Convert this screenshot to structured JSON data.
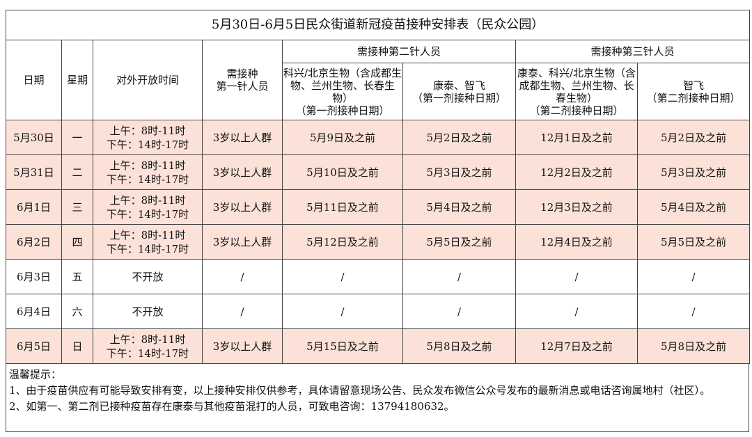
{
  "title": "5月30日-6月5日民众街道新冠疫苗接种安排表（民众公园）",
  "headers": {
    "date": "日期",
    "weekday": "星期",
    "hours": "对外开放时间",
    "first": "需接种\n第一针人员",
    "second_group": "需接种第二针人员",
    "third_group": "需接种第三针人员",
    "second_a": "科兴/北京生物（含成都生物、兰州生物、长春生物）\n（第一剂接种日期）",
    "second_b": "康泰、智飞\n（第一剂接种日期）",
    "third_a": "康泰、科兴/北京生物（含成都生物、兰州生物、长春生物）\n（第二剂接种日期）",
    "third_b": "智飞\n（第二剂接种日期）"
  },
  "rows": [
    {
      "date": "5月30日",
      "weekday": "一",
      "am": "上午：8时-11时",
      "pm": "下午：14时-17时",
      "first": "3岁以上人群",
      "s1": "5月9日及之前",
      "s2": "5月2日及之前",
      "t1": "12月1日及之前",
      "t2": "5月2日及之前"
    },
    {
      "date": "5月31日",
      "weekday": "二",
      "am": "上午：8时-11时",
      "pm": "下午：14时-17时",
      "first": "3岁以上人群",
      "s1": "5月10日及之前",
      "s2": "5月3日及之前",
      "t1": "12月2日及之前",
      "t2": "5月3日及之前"
    },
    {
      "date": "6月1日",
      "weekday": "三",
      "am": "上午：8时-11时",
      "pm": "下午：14时-17时",
      "first": "3岁以上人群",
      "s1": "5月11日及之前",
      "s2": "5月4日及之前",
      "t1": "12月3日及之前",
      "t2": "5月4日及之前"
    },
    {
      "date": "6月2日",
      "weekday": "四",
      "am": "上午：8时-11时",
      "pm": "下午：14时-17时",
      "first": "3岁以上人群",
      "s1": "5月12日及之前",
      "s2": "5月5日及之前",
      "t1": "12月4日及之前",
      "t2": "5月5日及之前"
    },
    {
      "date": "6月3日",
      "weekday": "五",
      "closed": "不开放",
      "first": "/",
      "s1": "/",
      "s2": "/",
      "t1": "/",
      "t2": "/"
    },
    {
      "date": "6月4日",
      "weekday": "六",
      "closed": "不开放",
      "first": "/",
      "s1": "/",
      "s2": "/",
      "t1": "/",
      "t2": "/"
    },
    {
      "date": "6月5日",
      "weekday": "日",
      "am": "上午：8时-11时",
      "pm": "下午：14时-17时",
      "first": "3岁以上人群",
      "s1": "5月15日及之前",
      "s2": "5月8日及之前",
      "t1": "12月7日及之前",
      "t2": "5月8日及之前"
    }
  ],
  "notes": {
    "heading": "温馨提示：",
    "items": [
      "1、由于疫苗供应有可能导致安排有变，以上接种安排仅供参考，具体请留意现场公告、民众发布微信公众号发布的最新消息或电话咨询属地村（社区）。",
      "2、如第一、第二剂已接种疫苗存在康泰与其他疫苗混打的人员，可致电咨询：13794180632。"
    ]
  },
  "colors": {
    "open_row_bg": "#fbe1d7"
  }
}
